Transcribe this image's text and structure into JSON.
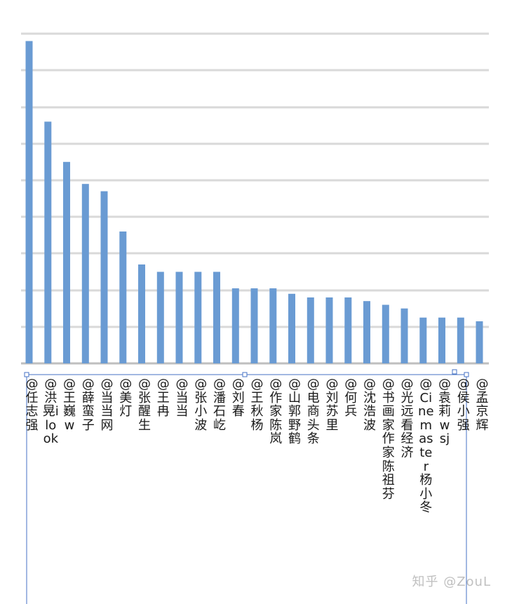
{
  "chart_data": {
    "type": "bar",
    "categories": [
      "@任志强",
      "@洪晃ilook",
      "@王巍w",
      "@薛蛮子",
      "@当当网",
      "@美灯",
      "@张醒生",
      "@王冉",
      "@当当",
      "@张小波",
      "@潘石屹",
      "@刘春",
      "@王秋杨",
      "@作家陈岚",
      "@山郭野鹤",
      "@电商头条",
      "@刘苏里",
      "@何兵",
      "@沈浩波",
      "@书画家作家陈祖芬",
      "@光远看经济",
      "@Cinemaster杨小冬",
      "@袁莉wsj",
      "@侯小强",
      "@孟京辉"
    ],
    "values": [
      8.8,
      6.6,
      5.5,
      4.9,
      4.7,
      3.6,
      2.7,
      2.5,
      2.5,
      2.5,
      2.5,
      2.05,
      2.05,
      2.05,
      1.9,
      1.8,
      1.8,
      1.8,
      1.7,
      1.6,
      1.5,
      1.25,
      1.25,
      1.25,
      1.15
    ],
    "ylim": [
      0,
      9.5
    ],
    "grid": true,
    "bar_color": "#6a9bd3",
    "grid_color": "#d9d9d9",
    "axis_color": "#bfbfbf",
    "frame_color": "#4472c4"
  },
  "watermark": "知乎 @ZouL"
}
